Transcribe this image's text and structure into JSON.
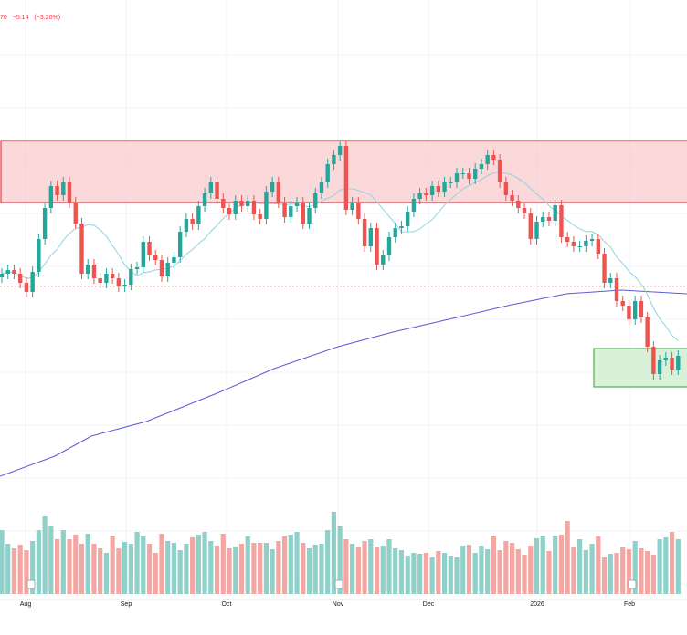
{
  "header": {
    "price_fragment": "70",
    "change": "−5.14",
    "change_pct": "(−3.20%)",
    "change_color": "#f23645"
  },
  "colors": {
    "up": "#26a69a",
    "down": "#ef5350",
    "up_volume": "#8fd0c8",
    "down_volume": "#f4a6a2",
    "ma_short": "#8fd3e0",
    "ma_long": "#5b5bd6",
    "resistance_zone_fill": "#f9c7cb",
    "resistance_zone_border": "#f23645",
    "support_zone_fill": "#cfeccf",
    "support_zone_border": "#4caf50",
    "grid": "#f0f3fa",
    "reference_line": "#f7a7a7"
  },
  "chart_data": {
    "type": "candlestick",
    "x_axis_labels": [
      "Aug",
      "Sep",
      "Oct",
      "Nov",
      "Dec",
      "2026",
      "Feb"
    ],
    "price_axis_visible": false,
    "grid": true,
    "zones": [
      {
        "name": "resistance",
        "price_low": 222,
        "price_high": 154
      },
      {
        "name": "support",
        "price_low": 424,
        "price_high": 382
      }
    ],
    "reference_price_level": 314,
    "event_markers_near_months": [
      "Aug",
      "Nov",
      "Feb"
    ],
    "series": {
      "close": [
        300,
        296,
        300,
        310,
        320,
        298,
        262,
        228,
        204,
        214,
        200,
        222,
        245,
        300,
        290,
        305,
        310,
        300,
        305,
        314,
        312,
        295,
        293,
        265,
        280,
        285,
        303,
        288,
        282,
        254,
        240,
        246,
        226,
        212,
        200,
        218,
        228,
        235,
        220,
        226,
        220,
        235,
        240,
        210,
        200,
        222,
        238,
        226,
        222,
        245,
        228,
        212,
        200,
        180,
        170,
        160,
        230,
        222,
        240,
        270,
        250,
        290,
        280,
        260,
        250,
        248,
        232,
        218,
        212,
        214,
        204,
        210,
        200,
        200,
        190,
        190,
        196,
        185,
        180,
        170,
        175,
        200,
        214,
        220,
        228,
        234,
        262,
        243,
        238,
        242,
        225,
        260,
        265,
        270,
        270,
        264,
        262,
        278,
        310,
        305,
        330,
        335,
        350,
        330,
        348,
        380,
        410,
        395,
        392,
        405,
        390
      ],
      "volume": [
        70,
        55,
        50,
        54,
        48,
        58,
        70,
        85,
        75,
        60,
        70,
        60,
        65,
        55,
        66,
        55,
        50,
        45,
        64,
        50,
        57,
        55,
        68,
        63,
        55,
        45,
        66,
        58,
        56,
        48,
        55,
        62,
        65,
        68,
        58,
        53,
        66,
        50,
        52,
        55,
        63,
        56,
        56,
        56,
        49,
        58,
        63,
        65,
        68,
        56,
        50,
        54,
        55,
        70,
        90,
        74,
        60,
        55,
        51,
        58,
        60,
        52,
        53,
        60,
        50,
        48,
        42,
        45,
        44,
        45,
        40,
        47,
        45,
        42,
        40,
        53,
        54,
        45,
        53,
        49,
        64,
        48,
        58,
        56,
        49,
        43,
        53,
        61,
        64,
        47,
        64,
        65,
        80,
        51,
        60,
        48,
        55,
        63,
        40,
        44,
        45,
        51,
        49,
        58,
        50,
        47,
        43,
        60,
        62,
        68,
        60
      ]
    }
  }
}
